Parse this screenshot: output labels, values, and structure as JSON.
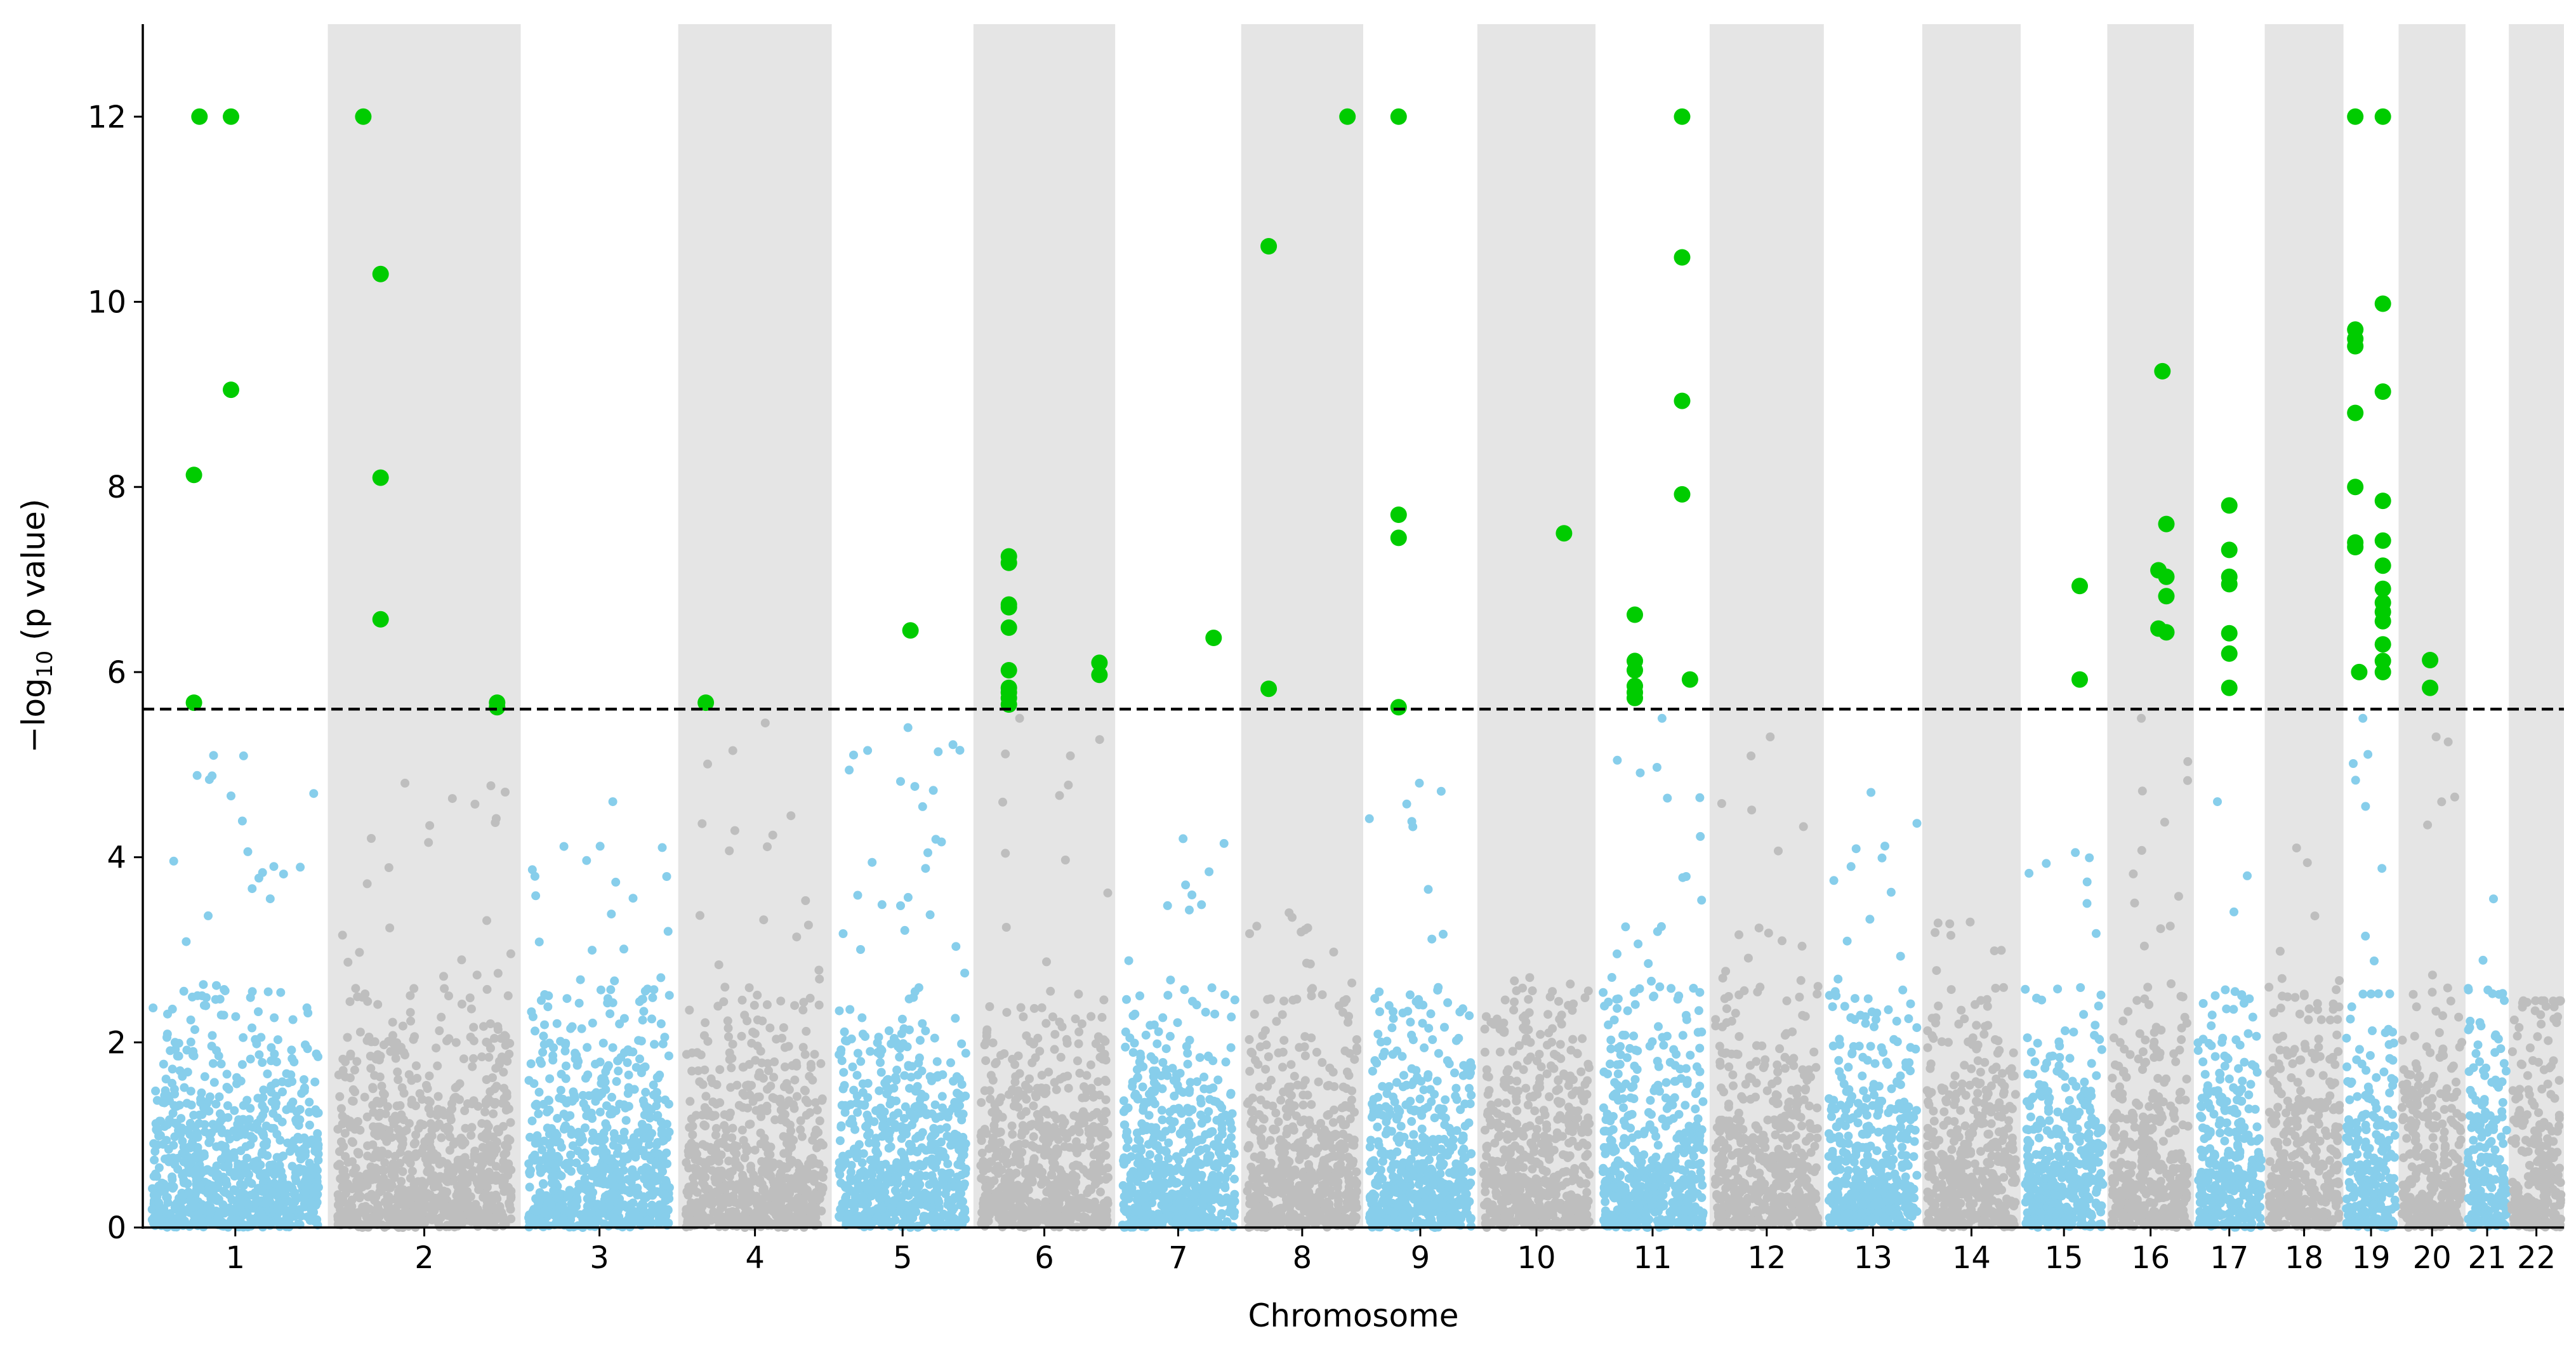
{
  "chart_data": {
    "type": "scatter",
    "subtype": "manhattan",
    "title": "",
    "xlabel": "Chromosome",
    "ylabel_parts": [
      "−log",
      "10",
      " (p value)"
    ],
    "ylim": [
      0,
      13
    ],
    "yticks": [
      0,
      2,
      4,
      6,
      8,
      10,
      12
    ],
    "significance_threshold": 5.6,
    "grid": false,
    "colors": {
      "odd_chromosome": "#87ceeb",
      "even_chromosome": "#bebebe",
      "significant": "#00cc00",
      "band": "#e5e5e5",
      "threshold_line": "#000000"
    },
    "chromosomes": [
      {
        "label": "1",
        "start": 0,
        "end": 2.35,
        "peak": 5.1
      },
      {
        "label": "2",
        "start": 2.35,
        "end": 4.8,
        "peak": 4.8
      },
      {
        "label": "3",
        "start": 4.8,
        "end": 6.8,
        "peak": 4.6
      },
      {
        "label": "4",
        "start": 6.8,
        "end": 8.75,
        "peak": 5.45
      },
      {
        "label": "5",
        "start": 8.75,
        "end": 10.55,
        "peak": 5.4
      },
      {
        "label": "6",
        "start": 10.55,
        "end": 12.35,
        "peak": 5.5
      },
      {
        "label": "7",
        "start": 12.35,
        "end": 13.95,
        "peak": 4.2
      },
      {
        "label": "8",
        "start": 13.95,
        "end": 15.5,
        "peak": 3.4
      },
      {
        "label": "9",
        "start": 15.5,
        "end": 16.95,
        "peak": 4.8
      },
      {
        "label": "10",
        "start": 16.95,
        "end": 18.45,
        "peak": 2.7
      },
      {
        "label": "11",
        "start": 18.45,
        "end": 19.9,
        "peak": 5.5
      },
      {
        "label": "12",
        "start": 19.9,
        "end": 21.35,
        "peak": 5.3
      },
      {
        "label": "13",
        "start": 21.35,
        "end": 22.6,
        "peak": 4.7
      },
      {
        "label": "14",
        "start": 22.6,
        "end": 23.85,
        "peak": 3.3
      },
      {
        "label": "15",
        "start": 23.85,
        "end": 24.95,
        "peak": 4.05
      },
      {
        "label": "16",
        "start": 24.95,
        "end": 26.05,
        "peak": 5.5
      },
      {
        "label": "17",
        "start": 26.05,
        "end": 26.95,
        "peak": 4.6
      },
      {
        "label": "18",
        "start": 26.95,
        "end": 27.95,
        "peak": 4.1
      },
      {
        "label": "19",
        "start": 27.95,
        "end": 28.65,
        "peak": 5.5
      },
      {
        "label": "20",
        "start": 28.65,
        "end": 29.5,
        "peak": 5.3
      },
      {
        "label": "21",
        "start": 29.5,
        "end": 30.05,
        "peak": 3.55
      },
      {
        "label": "22",
        "start": 30.05,
        "end": 30.75,
        "peak": 2.45
      }
    ],
    "significant_points": [
      {
        "x": 0.72,
        "y": 12.0
      },
      {
        "x": 1.12,
        "y": 12.0
      },
      {
        "x": 1.12,
        "y": 9.05
      },
      {
        "x": 0.65,
        "y": 8.13
      },
      {
        "x": 0.65,
        "y": 5.67
      },
      {
        "x": 2.8,
        "y": 12.0
      },
      {
        "x": 3.02,
        "y": 10.3
      },
      {
        "x": 3.02,
        "y": 8.1
      },
      {
        "x": 3.02,
        "y": 6.57
      },
      {
        "x": 4.5,
        "y": 5.67
      },
      {
        "x": 4.5,
        "y": 5.62
      },
      {
        "x": 7.15,
        "y": 5.67
      },
      {
        "x": 9.75,
        "y": 6.45
      },
      {
        "x": 11.0,
        "y": 7.25
      },
      {
        "x": 11.0,
        "y": 7.18
      },
      {
        "x": 11.0,
        "y": 6.73
      },
      {
        "x": 11.0,
        "y": 6.7
      },
      {
        "x": 11.0,
        "y": 6.48
      },
      {
        "x": 11.0,
        "y": 6.02
      },
      {
        "x": 11.0,
        "y": 5.83
      },
      {
        "x": 11.0,
        "y": 5.78
      },
      {
        "x": 11.0,
        "y": 5.72
      },
      {
        "x": 11.0,
        "y": 5.65
      },
      {
        "x": 12.15,
        "y": 6.1
      },
      {
        "x": 12.15,
        "y": 5.97
      },
      {
        "x": 13.6,
        "y": 6.37
      },
      {
        "x": 14.3,
        "y": 10.6
      },
      {
        "x": 14.3,
        "y": 5.82
      },
      {
        "x": 15.3,
        "y": 12.0
      },
      {
        "x": 15.95,
        "y": 12.0
      },
      {
        "x": 15.95,
        "y": 7.7
      },
      {
        "x": 15.95,
        "y": 7.45
      },
      {
        "x": 15.95,
        "y": 5.62
      },
      {
        "x": 18.05,
        "y": 7.5
      },
      {
        "x": 18.95,
        "y": 6.62
      },
      {
        "x": 18.95,
        "y": 6.12
      },
      {
        "x": 18.95,
        "y": 6.02
      },
      {
        "x": 18.95,
        "y": 5.85
      },
      {
        "x": 18.95,
        "y": 5.78
      },
      {
        "x": 18.95,
        "y": 5.72
      },
      {
        "x": 19.55,
        "y": 12.0
      },
      {
        "x": 19.55,
        "y": 10.48
      },
      {
        "x": 19.55,
        "y": 8.93
      },
      {
        "x": 19.55,
        "y": 7.92
      },
      {
        "x": 19.65,
        "y": 5.92
      },
      {
        "x": 24.6,
        "y": 6.93
      },
      {
        "x": 24.6,
        "y": 5.92
      },
      {
        "x": 25.65,
        "y": 9.25
      },
      {
        "x": 25.7,
        "y": 7.6
      },
      {
        "x": 25.6,
        "y": 7.1
      },
      {
        "x": 25.7,
        "y": 7.03
      },
      {
        "x": 25.7,
        "y": 6.82
      },
      {
        "x": 25.6,
        "y": 6.47
      },
      {
        "x": 25.7,
        "y": 6.43
      },
      {
        "x": 26.5,
        "y": 7.8
      },
      {
        "x": 26.5,
        "y": 7.32
      },
      {
        "x": 26.5,
        "y": 7.03
      },
      {
        "x": 26.5,
        "y": 6.95
      },
      {
        "x": 26.5,
        "y": 6.42
      },
      {
        "x": 26.5,
        "y": 6.2
      },
      {
        "x": 26.5,
        "y": 5.83
      },
      {
        "x": 28.1,
        "y": 12.0
      },
      {
        "x": 28.1,
        "y": 9.7
      },
      {
        "x": 28.1,
        "y": 9.6
      },
      {
        "x": 28.1,
        "y": 9.52
      },
      {
        "x": 28.1,
        "y": 8.8
      },
      {
        "x": 28.1,
        "y": 8.0
      },
      {
        "x": 28.1,
        "y": 7.4
      },
      {
        "x": 28.1,
        "y": 7.35
      },
      {
        "x": 28.15,
        "y": 6.0
      },
      {
        "x": 28.45,
        "y": 12.0
      },
      {
        "x": 28.45,
        "y": 9.98
      },
      {
        "x": 28.45,
        "y": 9.03
      },
      {
        "x": 28.45,
        "y": 7.85
      },
      {
        "x": 28.45,
        "y": 7.42
      },
      {
        "x": 28.45,
        "y": 7.15
      },
      {
        "x": 28.45,
        "y": 6.9
      },
      {
        "x": 28.45,
        "y": 6.75
      },
      {
        "x": 28.45,
        "y": 6.65
      },
      {
        "x": 28.45,
        "y": 6.55
      },
      {
        "x": 28.45,
        "y": 6.3
      },
      {
        "x": 28.45,
        "y": 6.12
      },
      {
        "x": 28.45,
        "y": 6.0
      },
      {
        "x": 29.05,
        "y": 6.13
      },
      {
        "x": 29.05,
        "y": 5.83
      }
    ]
  }
}
